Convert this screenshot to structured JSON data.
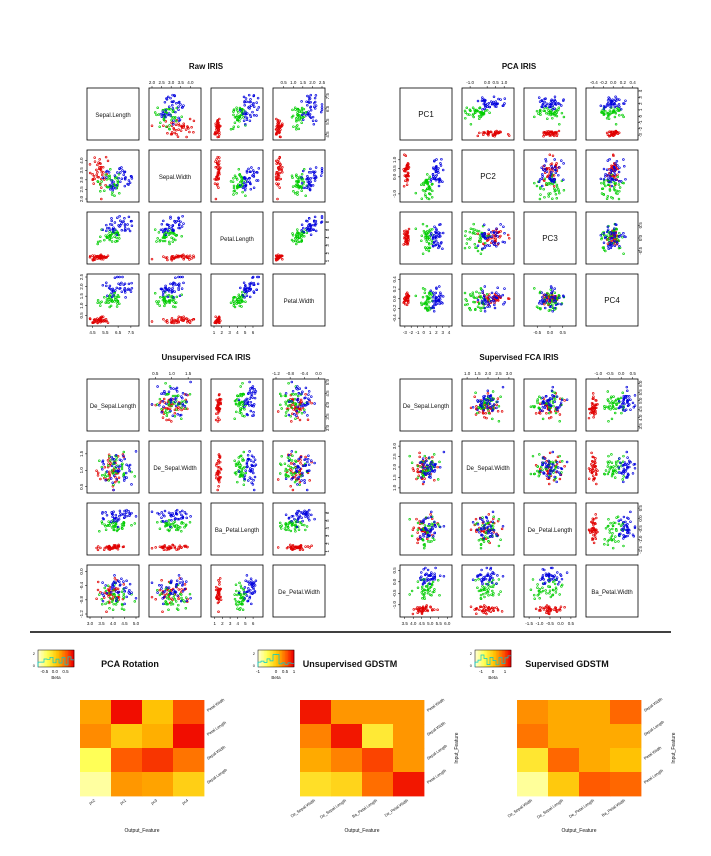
{
  "colors": {
    "setosa": "#e00000",
    "versicolor": "#00cc00",
    "virginica": "#0000dd"
  },
  "chart_data": [
    {
      "type": "scatter",
      "title": "Raw IRIS",
      "variables": [
        "Sepal.Length",
        "Sepal.Width",
        "Petal.Length",
        "Petal.Width"
      ],
      "ranges": [
        [
          4.3,
          7.9
        ],
        [
          2.0,
          4.4
        ],
        [
          1.0,
          6.9
        ],
        [
          0.1,
          2.5
        ]
      ],
      "ticks": [
        [
          "4.5",
          "5.5",
          "6.5",
          "7.5"
        ],
        [
          "2.0",
          "2.5",
          "3.0",
          "3.5",
          "4.0"
        ],
        [
          "1",
          "2",
          "3",
          "4",
          "5",
          "6",
          "7"
        ],
        [
          "0.5",
          "1.0",
          "1.5",
          "2.0",
          "2.5"
        ]
      ],
      "tick_values": [
        [
          4.5,
          5.5,
          6.5,
          7.5
        ],
        [
          2.0,
          2.5,
          3.0,
          3.5,
          4.0
        ],
        [
          1,
          2,
          3,
          4,
          5,
          6,
          7
        ],
        [
          0.5,
          1.0,
          1.5,
          2.0,
          2.5
        ]
      ],
      "class_means": [
        [
          5.0,
          3.4,
          1.5,
          0.25
        ],
        [
          5.9,
          2.8,
          4.3,
          1.3
        ],
        [
          6.6,
          3.0,
          5.6,
          2.0
        ]
      ],
      "class_sds": [
        [
          0.35,
          0.38,
          0.17,
          0.1
        ],
        [
          0.5,
          0.31,
          0.47,
          0.2
        ],
        [
          0.6,
          0.32,
          0.55,
          0.27
        ]
      ]
    },
    {
      "type": "scatter",
      "title": "PCA IRIS",
      "variables": [
        "PC1",
        "PC2",
        "PC3",
        "PC4"
      ],
      "ranges": [
        [
          -3.3,
          4.0
        ],
        [
          -1.3,
          1.4
        ],
        [
          -0.9,
          0.9
        ],
        [
          -0.5,
          0.45
        ]
      ],
      "ticks": [
        [
          "-3",
          "-2",
          "-1",
          "0",
          "1",
          "2",
          "3",
          "4"
        ],
        [
          "-1.0",
          "0.0",
          "0.5",
          "1.0"
        ],
        [
          "-0.5",
          "0.0",
          "0.5"
        ],
        [
          "-0.4",
          "-0.2",
          "0.0",
          "0.2",
          "0.4"
        ]
      ],
      "tick_values": [
        [
          -3,
          -2,
          -1,
          0,
          1,
          2,
          3,
          4
        ],
        [
          -1.0,
          0.0,
          0.5,
          1.0
        ],
        [
          -0.5,
          0.0,
          0.5
        ],
        [
          -0.4,
          -0.2,
          0.0,
          0.2,
          0.4
        ]
      ],
      "class_means": [
        [
          -2.7,
          0.3,
          0.0,
          0.0
        ],
        [
          0.5,
          -0.5,
          0.05,
          0.0
        ],
        [
          2.0,
          0.2,
          -0.05,
          0.0
        ]
      ],
      "class_sds": [
        [
          0.2,
          0.45,
          0.15,
          0.06
        ],
        [
          0.5,
          0.4,
          0.25,
          0.12
        ],
        [
          0.6,
          0.4,
          0.3,
          0.13
        ]
      ]
    },
    {
      "type": "scatter",
      "title": "Unsupervised FCA IRIS",
      "variables": [
        "De_Sepal.Length",
        "De_Sepal.Width",
        "Ba_Petal.Length",
        "De_Petal.Width"
      ],
      "ranges": [
        [
          3.0,
          5.0
        ],
        [
          0.4,
          1.8
        ],
        [
          0.9,
          6.9
        ],
        [
          -1.2,
          0.1
        ]
      ],
      "ticks": [
        [
          "3.0",
          "3.5",
          "4.0",
          "4.5",
          "5.0"
        ],
        [
          "0.5",
          "1.0",
          "1.5"
        ],
        [
          "1",
          "2",
          "3",
          "4",
          "5",
          "6",
          "7"
        ],
        [
          "-1.2",
          "-0.8",
          "-0.4",
          "0.0"
        ]
      ],
      "tick_values": [
        [
          3.0,
          3.5,
          4.0,
          4.5,
          5.0
        ],
        [
          0.5,
          1.0,
          1.5
        ],
        [
          1,
          2,
          3,
          4,
          5,
          6,
          7
        ],
        [
          -1.2,
          -0.8,
          -0.4,
          0.0
        ]
      ],
      "class_means": [
        [
          4.0,
          1.0,
          1.5,
          -0.6
        ],
        [
          4.1,
          1.05,
          4.3,
          -0.7
        ],
        [
          4.2,
          1.1,
          5.6,
          -0.45
        ]
      ],
      "class_sds": [
        [
          0.3,
          0.25,
          0.17,
          0.2
        ],
        [
          0.35,
          0.25,
          0.47,
          0.2
        ],
        [
          0.35,
          0.25,
          0.55,
          0.2
        ]
      ]
    },
    {
      "type": "scatter",
      "title": "Supervised FCA IRIS",
      "variables": [
        "De_Sepal.Length",
        "De_Sepal.Width",
        "De_Petal.Length",
        "Ba_Petal.Width"
      ],
      "ranges": [
        [
          3.4,
          6.1
        ],
        [
          0.9,
          3.1
        ],
        [
          -1.6,
          0.6
        ],
        [
          -1.4,
          0.6
        ]
      ],
      "ticks": [
        [
          "3.5",
          "4.0",
          "4.5",
          "5.0",
          "5.5",
          "6.0"
        ],
        [
          "1.0",
          "1.5",
          "2.0",
          "2.5",
          "3.0"
        ],
        [
          "-1.5",
          "-1.0",
          "-0.5",
          "0.0",
          "0.5"
        ],
        [
          "-1.0",
          "-0.5",
          "0.0",
          "0.5"
        ]
      ],
      "tick_values": [
        [
          3.5,
          4.0,
          4.5,
          5.0,
          5.5,
          6.0
        ],
        [
          1.0,
          1.5,
          2.0,
          2.5,
          3.0
        ],
        [
          -1.5,
          -1.0,
          -0.5,
          0.0,
          0.5
        ],
        [
          -1.0,
          -0.5,
          0.0,
          0.5
        ]
      ],
      "class_means": [
        [
          4.6,
          1.9,
          -0.5,
          -1.2
        ],
        [
          4.8,
          1.95,
          -0.55,
          -0.3
        ],
        [
          4.9,
          2.0,
          -0.45,
          0.25
        ]
      ],
      "class_sds": [
        [
          0.35,
          0.3,
          0.35,
          0.1
        ],
        [
          0.35,
          0.3,
          0.35,
          0.25
        ],
        [
          0.35,
          0.3,
          0.35,
          0.2
        ]
      ]
    },
    {
      "type": "heatmap",
      "title": "PCA Rotation",
      "legend_label": "Beta",
      "legend_ticks": [
        "-0.5",
        "0.0",
        "0.5"
      ],
      "legend_tick_values": [
        -0.5,
        0.0,
        0.5
      ],
      "legend_range": [
        -0.8,
        0.9
      ],
      "legend_count_ticks": [
        "0",
        "2"
      ],
      "x_label": "Output_Feature",
      "y_label": "",
      "x_ticks": [
        "pc2",
        "pc1",
        "pc3",
        "pc4"
      ],
      "y_ticks": [
        "Petal.Width",
        "Petal.Length",
        "Sepal.Width",
        "Sepal.Length"
      ],
      "values": [
        [
          0.25,
          0.85,
          0.1,
          0.6
        ],
        [
          0.35,
          0.05,
          0.2,
          0.85
        ],
        [
          -0.4,
          0.55,
          0.7,
          0.45
        ],
        [
          -0.65,
          0.3,
          0.25,
          0.0
        ]
      ],
      "value_range": [
        -0.8,
        0.9
      ]
    },
    {
      "type": "heatmap",
      "title": "Unsupervised GDSTM",
      "legend_label": "Beta",
      "legend_ticks": [
        "-1",
        "0",
        "0.5",
        "1"
      ],
      "legend_tick_values": [
        -1,
        0,
        0.5,
        1
      ],
      "legend_range": [
        -1,
        1
      ],
      "legend_count_ticks": [
        "0",
        "2"
      ],
      "x_label": "Output_Feature",
      "y_label": "Input_Feature",
      "x_ticks": [
        "De_Sepal.Width",
        "De_Sepal.Length",
        "Ba_Petal.Length",
        "De_Petal.Width"
      ],
      "y_ticks": [
        "Petal.Width",
        "Sepal.Width",
        "Sepal.Length",
        "Petal.Length"
      ],
      "values": [
        [
          0.9,
          0.3,
          0.3,
          0.3
        ],
        [
          0.4,
          0.9,
          -0.3,
          0.3
        ],
        [
          0.2,
          0.4,
          0.7,
          0.3
        ],
        [
          -0.2,
          -0.1,
          0.5,
          0.9
        ]
      ],
      "value_range": [
        -1,
        1
      ]
    },
    {
      "type": "heatmap",
      "title": "Supervised GDSTM",
      "legend_label": "Beta",
      "legend_ticks": [
        "-1",
        "0",
        "1"
      ],
      "legend_tick_values": [
        -1,
        0,
        1
      ],
      "legend_range": [
        -1.5,
        1.5
      ],
      "legend_count_ticks": [
        "0",
        "2"
      ],
      "x_label": "Output_Feature",
      "y_label": "Input_Feature",
      "x_ticks": [
        "De_Sepal.Width",
        "De_Sepal.Length",
        "De_Petal.Length",
        "Ba_Petal.Width"
      ],
      "y_ticks": [
        "Sepal.Width",
        "Sepal.Length",
        "Petal.Width",
        "Petal.Length"
      ],
      "values": [
        [
          0.5,
          0.3,
          0.3,
          0.8
        ],
        [
          0.7,
          0.3,
          0.3,
          0.3
        ],
        [
          -0.4,
          0.8,
          0.3,
          0.1
        ],
        [
          -1.2,
          0.0,
          0.9,
          0.8
        ]
      ],
      "value_range": [
        -1.5,
        1.5
      ]
    }
  ]
}
